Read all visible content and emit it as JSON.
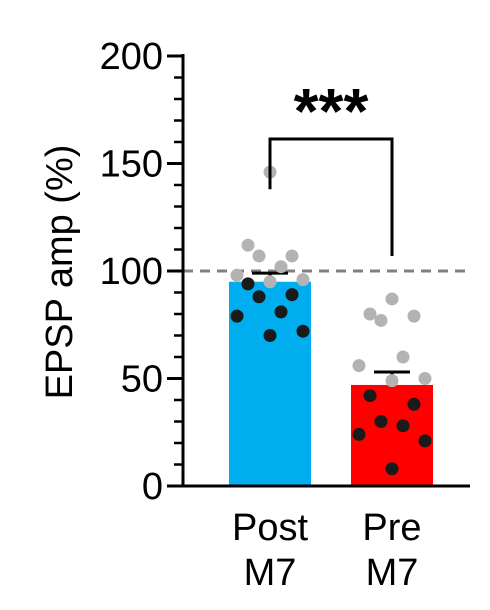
{
  "chart_data": {
    "type": "bar",
    "ylabel": "EPSP amp (%)",
    "ylim": [
      0,
      200
    ],
    "yticks_major": [
      0,
      50,
      100,
      150,
      200
    ],
    "yticks_minor": [
      10,
      20,
      30,
      40,
      60,
      70,
      80,
      90,
      110,
      120,
      130,
      140,
      160,
      170,
      180,
      190
    ],
    "grid": false,
    "legend": "none",
    "reference_line": {
      "y": 100,
      "style": "dashed",
      "color": "#808080"
    },
    "categories": [
      {
        "line1": "Post",
        "line2": "M7"
      },
      {
        "line1": "Pre",
        "line2": "M7"
      }
    ],
    "bars": [
      {
        "mean": 95,
        "sem": 4,
        "color": "#00aeef",
        "points": [
          {
            "y": 146,
            "shade": "light"
          },
          {
            "y": 112,
            "shade": "light"
          },
          {
            "y": 107,
            "shade": "light"
          },
          {
            "y": 107,
            "shade": "light"
          },
          {
            "y": 102,
            "shade": "light"
          },
          {
            "y": 98,
            "shade": "light"
          },
          {
            "y": 96,
            "shade": "light"
          },
          {
            "y": 95,
            "shade": "light"
          },
          {
            "y": 94,
            "shade": "dark"
          },
          {
            "y": 89,
            "shade": "dark"
          },
          {
            "y": 88,
            "shade": "dark"
          },
          {
            "y": 81,
            "shade": "dark"
          },
          {
            "y": 79,
            "shade": "dark"
          },
          {
            "y": 72,
            "shade": "dark"
          },
          {
            "y": 70,
            "shade": "dark"
          }
        ]
      },
      {
        "mean": 47,
        "sem": 6,
        "color": "#ff0000",
        "points": [
          {
            "y": 87,
            "shade": "light"
          },
          {
            "y": 80,
            "shade": "light"
          },
          {
            "y": 79,
            "shade": "light"
          },
          {
            "y": 77,
            "shade": "light"
          },
          {
            "y": 60,
            "shade": "light"
          },
          {
            "y": 56,
            "shade": "light"
          },
          {
            "y": 50,
            "shade": "light"
          },
          {
            "y": 49,
            "shade": "light"
          },
          {
            "y": 42,
            "shade": "dark"
          },
          {
            "y": 38,
            "shade": "dark"
          },
          {
            "y": 30,
            "shade": "dark"
          },
          {
            "y": 28,
            "shade": "dark"
          },
          {
            "y": 24,
            "shade": "dark"
          },
          {
            "y": 21,
            "shade": "dark"
          },
          {
            "y": 8,
            "shade": "dark"
          }
        ]
      }
    ],
    "point_colors": {
      "light": "#b3b3b3",
      "dark": "#1a1a1a"
    },
    "significance": {
      "label": "***",
      "from": 0,
      "to": 1
    }
  }
}
